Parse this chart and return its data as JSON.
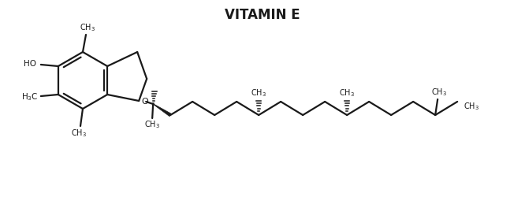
{
  "title": "VITAMIN E",
  "title_fontsize": 12,
  "title_fontweight": "bold",
  "bg_color": "#ffffff",
  "line_color": "#1a1a1a",
  "text_color": "#1a1a1a",
  "lw": 1.6,
  "fs": 7.0
}
